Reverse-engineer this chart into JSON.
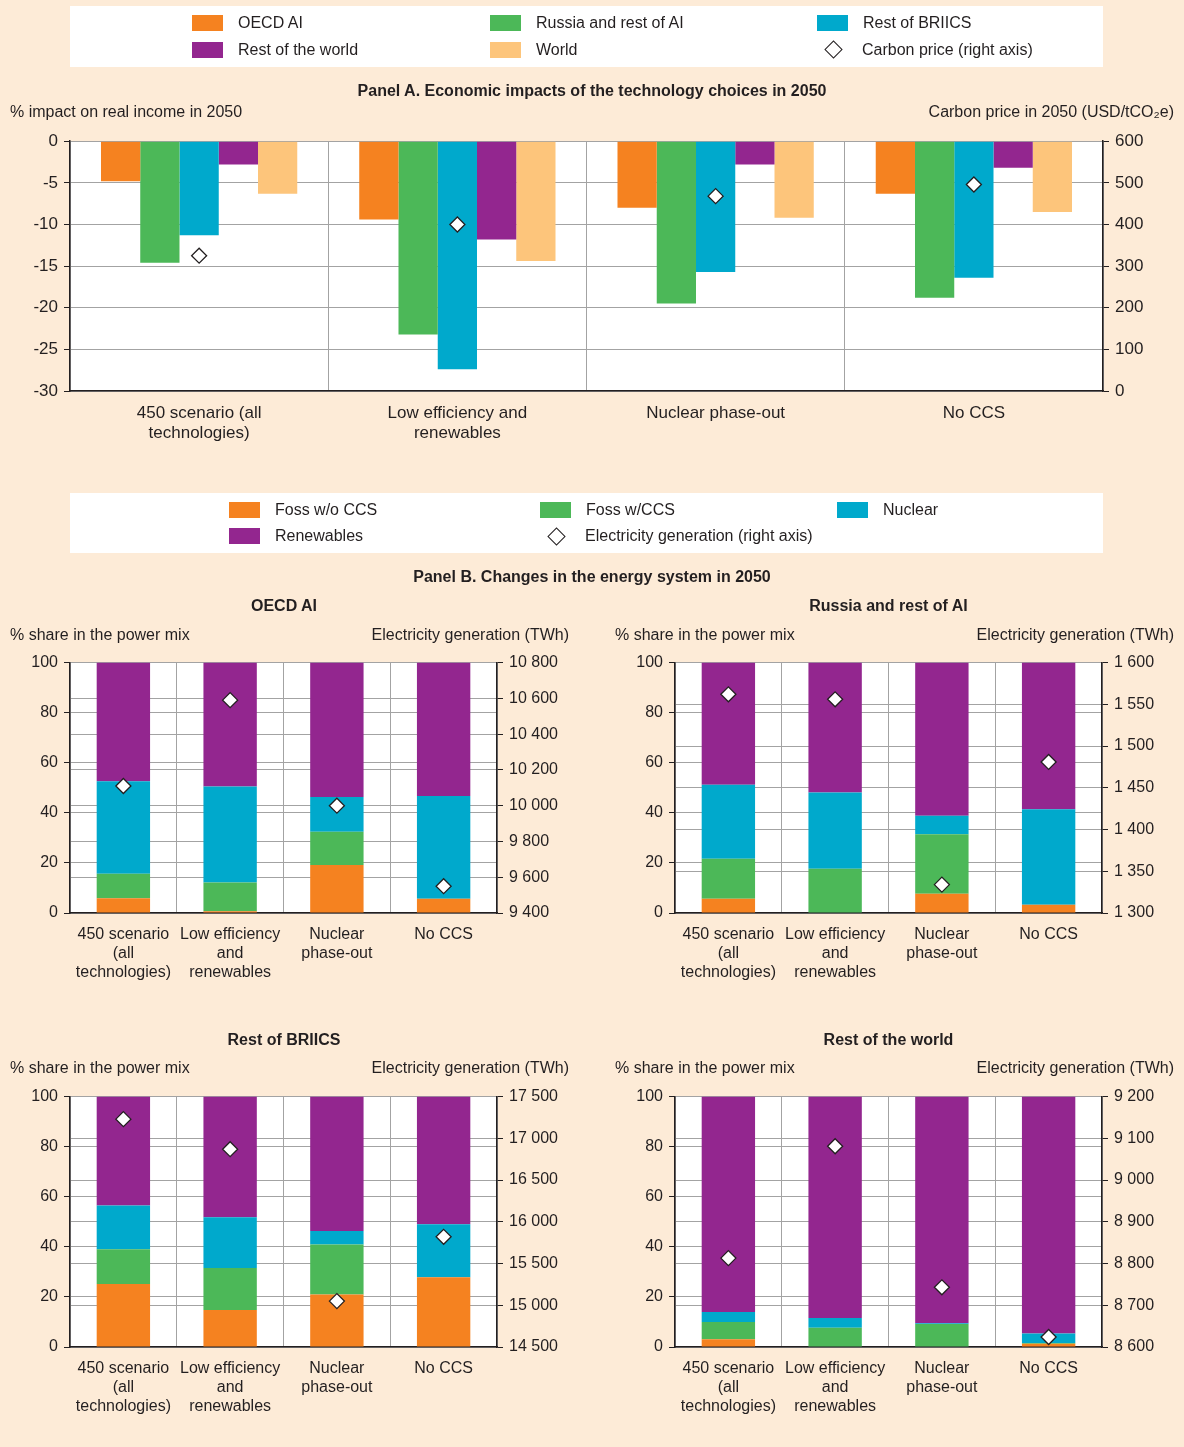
{
  "chart_data": [
    {
      "type": "bar",
      "title": "Panel A. Economic impacts of the technology choices in 2050",
      "ylabel": "% impact on real income in 2050",
      "y2label": "Carbon price in 2050 (USD/tCO₂e)",
      "categories": [
        "450 scenario (all technologies)",
        "Low efficiency and renewables",
        "Nuclear phase-out",
        "No CCS"
      ],
      "series": [
        {
          "name": "OECD AI",
          "color": "#f58220",
          "values": [
            -4.8,
            -9.4,
            -8.0,
            -6.3
          ]
        },
        {
          "name": "Russia and rest of AI",
          "color": "#4cb858",
          "values": [
            -14.6,
            -23.2,
            -19.5,
            -18.8
          ]
        },
        {
          "name": "Rest of BRIICS",
          "color": "#00a9cc",
          "values": [
            -11.3,
            -27.4,
            -15.7,
            -16.4
          ]
        },
        {
          "name": "Rest of the world",
          "color": "#93268f",
          "values": [
            -2.8,
            -11.8,
            -2.8,
            -3.2
          ]
        },
        {
          "name": "World",
          "color": "#fdc57b",
          "values": [
            -6.3,
            -14.4,
            -9.2,
            -8.5
          ]
        },
        {
          "name": "Carbon price (right axis)",
          "type": "scatter",
          "axis": "y2",
          "marker": "diamond",
          "color": "#ffffff",
          "x": [
            "450 scenario (all technologies)",
            "Low efficiency and renewables",
            "Nuclear phase-out",
            "No CCS"
          ],
          "values": [
            325,
            400,
            468,
            496
          ]
        }
      ],
      "ylim": [
        -30,
        0
      ],
      "yticks": [
        -30,
        -25,
        -20,
        -15,
        -10,
        -5,
        0
      ],
      "y2lim": [
        0,
        600
      ],
      "y2ticks": [
        0,
        100,
        200,
        300,
        400,
        500,
        600
      ],
      "grid": true,
      "legend": "top"
    },
    {
      "type": "bar",
      "stacked": true,
      "title": "Panel B. Changes in the energy system in 2050",
      "subtitle": "OECD AI",
      "ylabel": "% share in the power mix",
      "y2label": "Electricity generation (TWh)",
      "categories": [
        "450 scenario (all technologies)",
        "Low efficiency and renewables",
        "Nuclear phase-out",
        "No CCS"
      ],
      "series": [
        {
          "name": "Foss w/o CCS",
          "color": "#f58220",
          "values": [
            5.9,
            0.7,
            19.2,
            5.7
          ]
        },
        {
          "name": "Foss w/CCS",
          "color": "#4cb858",
          "values": [
            9.8,
            11.5,
            13.2,
            0
          ]
        },
        {
          "name": "Nuclear",
          "color": "#00a9cc",
          "values": [
            36.9,
            38.3,
            13.9,
            41.0
          ]
        },
        {
          "name": "Renewables",
          "color": "#93268f",
          "values": [
            47.4,
            49.5,
            53.7,
            53.3
          ]
        },
        {
          "name": "Electricity generation (right axis)",
          "type": "scatter",
          "axis": "y2",
          "marker": "diamond",
          "color": "#ffffff",
          "x": [
            "450 scenario (all technologies)",
            "Low efficiency and renewables",
            "Nuclear phase-out",
            "No CCS"
          ],
          "values": [
            10110,
            10590,
            10000,
            9550
          ]
        }
      ],
      "ylim": [
        0,
        100
      ],
      "yticks": [
        0,
        20,
        40,
        60,
        80,
        100
      ],
      "y2lim": [
        9400,
        10800
      ],
      "y2ticks": [
        {
          "value": 9400,
          "label": "9 400"
        },
        {
          "value": 9600,
          "label": "9 600"
        },
        {
          "value": 9800,
          "label": "9 800"
        },
        {
          "value": 10000,
          "label": "10 000"
        },
        {
          "value": 10200,
          "label": "10 200"
        },
        {
          "value": 10400,
          "label": "10 400"
        },
        {
          "value": 10600,
          "label": "10 600"
        },
        {
          "value": 10800,
          "label": "10 800"
        }
      ],
      "grid": true,
      "legend": "top"
    },
    {
      "type": "bar",
      "stacked": true,
      "title": "Russia and rest of AI",
      "ylabel": "% share in the power mix",
      "y2label": "Electricity generation (TWh)",
      "categories": [
        "450 scenario (all technologies)",
        "Low efficiency and renewables",
        "Nuclear phase-out",
        "No CCS"
      ],
      "series": [
        {
          "name": "Foss w/o CCS",
          "color": "#f58220",
          "values": [
            5.7,
            0,
            7.7,
            3.3
          ]
        },
        {
          "name": "Foss w/CCS",
          "color": "#4cb858",
          "values": [
            16.0,
            17.7,
            23.7,
            0
          ]
        },
        {
          "name": "Nuclear",
          "color": "#00a9cc",
          "values": [
            29.5,
            30.4,
            7.4,
            38.1
          ]
        },
        {
          "name": "Renewables",
          "color": "#93268f",
          "values": [
            48.8,
            51.9,
            61.2,
            58.6
          ]
        },
        {
          "name": "Electricity generation (right axis)",
          "type": "scatter",
          "axis": "y2",
          "marker": "diamond",
          "color": "#ffffff",
          "x": [
            "450 scenario (all technologies)",
            "Low efficiency and renewables",
            "Nuclear phase-out",
            "No CCS"
          ],
          "values": [
            1562,
            1556,
            1334,
            1481
          ]
        }
      ],
      "ylim": [
        0,
        100
      ],
      "yticks": [
        0,
        20,
        40,
        60,
        80,
        100
      ],
      "y2lim": [
        1300,
        1600
      ],
      "y2ticks": [
        {
          "value": 1300,
          "label": "1 300"
        },
        {
          "value": 1350,
          "label": "1 350"
        },
        {
          "value": 1400,
          "label": "1 400"
        },
        {
          "value": 1450,
          "label": "1 450"
        },
        {
          "value": 1500,
          "label": "1 500"
        },
        {
          "value": 1550,
          "label": "1 550"
        },
        {
          "value": 1600,
          "label": "1 600"
        }
      ],
      "grid": true
    },
    {
      "type": "bar",
      "stacked": true,
      "title": "Rest of BRIICS",
      "ylabel": "% share in the power mix",
      "y2label": "Electricity generation (TWh)",
      "categories": [
        "450 scenario (all technologies)",
        "Low efficiency and renewables",
        "Nuclear phase-out",
        "No CCS"
      ],
      "series": [
        {
          "name": "Foss w/o CCS",
          "color": "#f58220",
          "values": [
            25.2,
            14.8,
            21.0,
            27.9
          ]
        },
        {
          "name": "Foss w/CCS",
          "color": "#4cb858",
          "values": [
            13.8,
            16.7,
            19.9,
            0
          ]
        },
        {
          "name": "Nuclear",
          "color": "#00a9cc",
          "values": [
            17.5,
            20.3,
            5.4,
            21.1
          ]
        },
        {
          "name": "Renewables",
          "color": "#93268f",
          "values": [
            43.5,
            48.2,
            53.7,
            51.0
          ]
        },
        {
          "name": "Electricity generation (right axis)",
          "type": "scatter",
          "axis": "y2",
          "marker": "diamond",
          "color": "#ffffff",
          "x": [
            "450 scenario (all technologies)",
            "Low efficiency and renewables",
            "Nuclear phase-out",
            "No CCS"
          ],
          "values": [
            17230,
            16870,
            15050,
            15820
          ]
        }
      ],
      "ylim": [
        0,
        100
      ],
      "yticks": [
        0,
        20,
        40,
        60,
        80,
        100
      ],
      "y2lim": [
        14500,
        17500
      ],
      "y2ticks": [
        {
          "value": 14500,
          "label": "14 500"
        },
        {
          "value": 15000,
          "label": "15 000"
        },
        {
          "value": 15500,
          "label": "15 500"
        },
        {
          "value": 16000,
          "label": "16 000"
        },
        {
          "value": 16500,
          "label": "16 500"
        },
        {
          "value": 17000,
          "label": "17 000"
        },
        {
          "value": 17500,
          "label": "17 500"
        }
      ],
      "grid": true
    },
    {
      "type": "bar",
      "stacked": true,
      "title": "Rest of the world",
      "ylabel": "% share in the power mix",
      "y2label": "Electricity generation (TWh)",
      "categories": [
        "450 scenario (all technologies)",
        "Low efficiency and renewables",
        "Nuclear phase-out",
        "No CCS"
      ],
      "series": [
        {
          "name": "Foss w/o CCS",
          "color": "#f58220",
          "values": [
            3.1,
            0,
            0,
            1.3
          ]
        },
        {
          "name": "Foss w/CCS",
          "color": "#4cb858",
          "values": [
            6.9,
            7.7,
            9.2,
            0.3
          ]
        },
        {
          "name": "Nuclear",
          "color": "#00a9cc",
          "values": [
            4.0,
            3.9,
            0.3,
            3.8
          ]
        },
        {
          "name": "Renewables",
          "color": "#93268f",
          "values": [
            86.0,
            88.4,
            90.5,
            94.6
          ]
        },
        {
          "name": "Electricity generation (right axis)",
          "type": "scatter",
          "axis": "y2",
          "marker": "diamond",
          "color": "#ffffff",
          "x": [
            "450 scenario (all technologies)",
            "Low efficiency and renewables",
            "Nuclear phase-out",
            "No CCS"
          ],
          "values": [
            8813,
            9081,
            8743,
            8624
          ]
        }
      ],
      "ylim": [
        0,
        100
      ],
      "yticks": [
        0,
        20,
        40,
        60,
        80,
        100
      ],
      "y2lim": [
        8600,
        9200
      ],
      "y2ticks": [
        {
          "value": 8600,
          "label": "8 600"
        },
        {
          "value": 8700,
          "label": "8 700"
        },
        {
          "value": 8800,
          "label": "8 800"
        },
        {
          "value": 8900,
          "label": "8 900"
        },
        {
          "value": 9000,
          "label": "9 000"
        },
        {
          "value": 9100,
          "label": "9 100"
        },
        {
          "value": 9200,
          "label": "9 200"
        }
      ],
      "grid": true
    }
  ]
}
